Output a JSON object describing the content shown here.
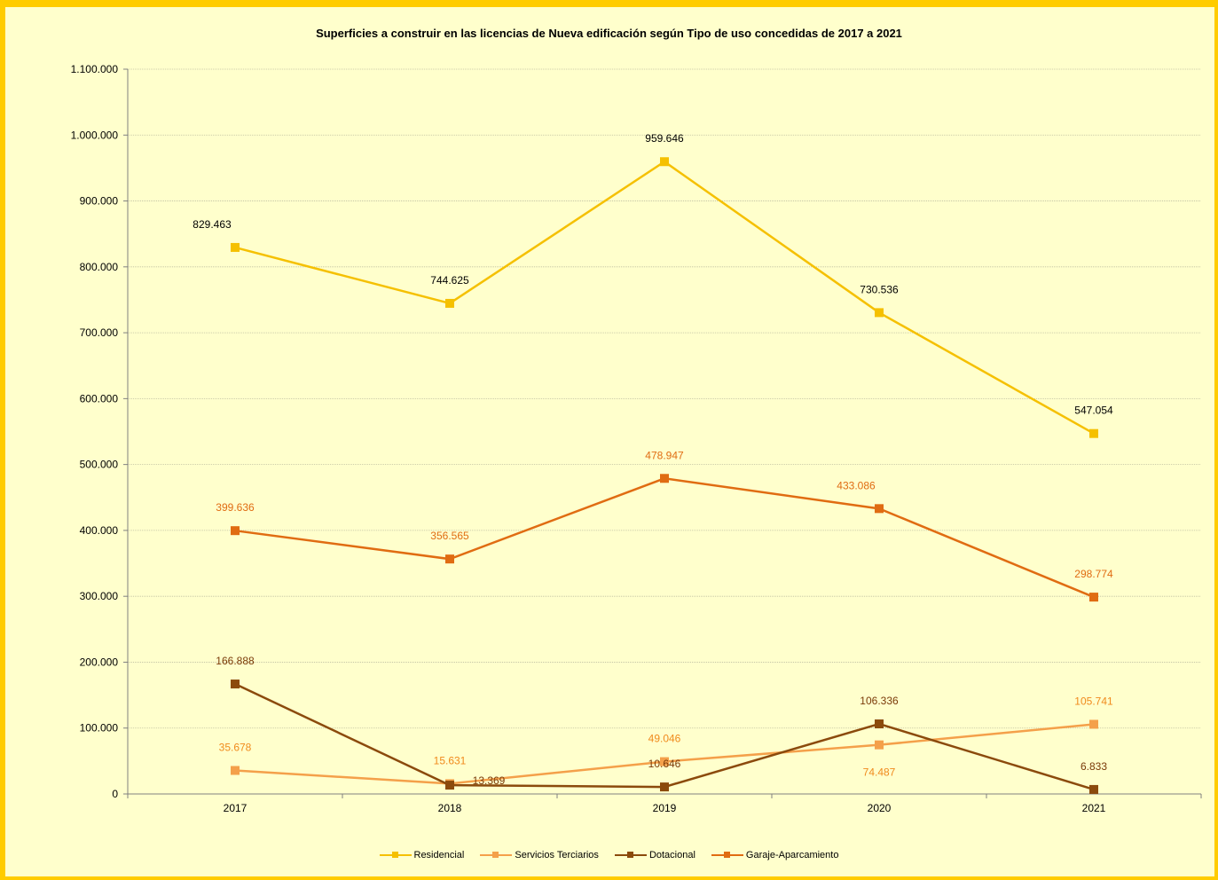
{
  "chart_data": {
    "type": "line",
    "title": "Superficies a construir en las licencias de Nueva edificación según Tipo de uso concedidas de 2017 a 2021",
    "xlabel": "",
    "ylabel": "",
    "categories": [
      "2017",
      "2018",
      "2019",
      "2020",
      "2021"
    ],
    "ylim": [
      0,
      1100000
    ],
    "yticks": [
      0,
      100000,
      200000,
      300000,
      400000,
      500000,
      600000,
      700000,
      800000,
      900000,
      1000000,
      1100000
    ],
    "ytick_labels": [
      "0",
      "100.000",
      "200.000",
      "300.000",
      "400.000",
      "500.000",
      "600.000",
      "700.000",
      "800.000",
      "900.000",
      "1.000.000",
      "1.100.000"
    ],
    "grid": true,
    "legend_position": "bottom",
    "series": [
      {
        "name": "Residencial",
        "color": "#f5c000",
        "label_color": "#000000",
        "values": [
          829463,
          744625,
          959646,
          730536,
          547054
        ],
        "labels": [
          "829.463",
          "744.625",
          "959.646",
          "730.536",
          "547.054"
        ],
        "label_pos": [
          "above-left",
          "above",
          "above",
          "above",
          "above"
        ]
      },
      {
        "name": "Servicios Terciarios",
        "color": "#f4a04a",
        "label_color": "#f08a1c",
        "values": [
          35678,
          15631,
          49046,
          74487,
          105741
        ],
        "labels": [
          "35.678",
          "15.631",
          "49.046",
          "74.487",
          "105.741"
        ],
        "label_pos": [
          "above",
          "above",
          "above",
          "below",
          "above"
        ]
      },
      {
        "name": "Dotacional",
        "color": "#8b4a0c",
        "label_color": "#7a3a08",
        "values": [
          166888,
          13369,
          10646,
          106336,
          6833
        ],
        "labels": [
          "166.888",
          "13.369",
          "10.646",
          "106.336",
          "6.833"
        ],
        "label_pos": [
          "above",
          "right",
          "above",
          "above",
          "above"
        ]
      },
      {
        "name": "Garaje-Aparcamiento",
        "color": "#e06c12",
        "label_color": "#e06c12",
        "values": [
          399636,
          356565,
          478947,
          433086,
          298774
        ],
        "labels": [
          "399.636",
          "356.565",
          "478.947",
          "433.086",
          "298.774"
        ],
        "label_pos": [
          "above",
          "above",
          "above",
          "above-left",
          "above"
        ]
      }
    ]
  }
}
